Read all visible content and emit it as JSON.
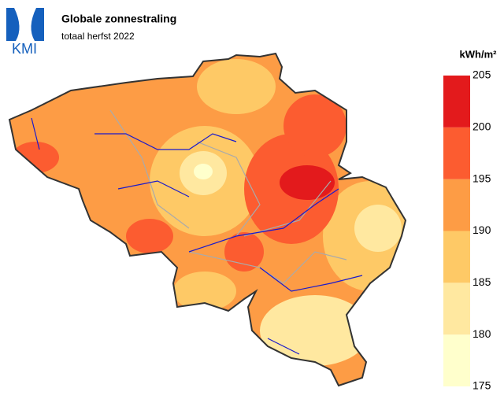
{
  "logo": "KMI",
  "header": {
    "title": "Globale zonnestraling",
    "subtitle": "totaal herfst 2022"
  },
  "legend": {
    "unit": "kWh/m²",
    "bins": [
      175,
      180,
      185,
      190,
      195,
      200,
      205
    ],
    "colors": [
      "#ffffcc",
      "#ffe8a0",
      "#fec966",
      "#fd9c45",
      "#fc5c30",
      "#e31a1c"
    ]
  }
}
